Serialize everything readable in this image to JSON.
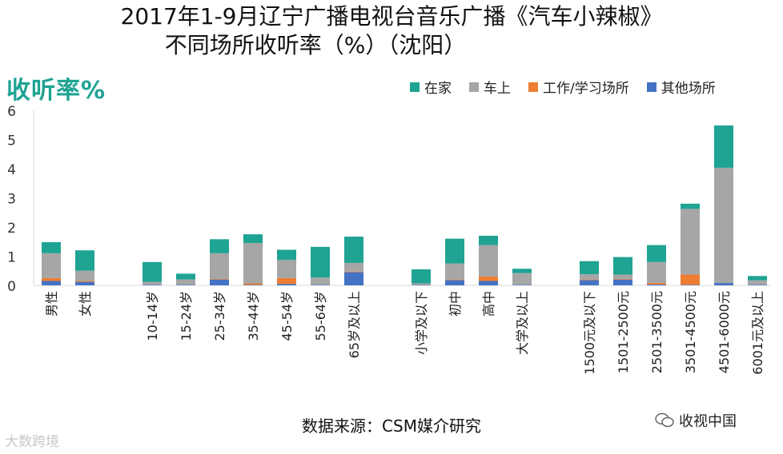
{
  "title_line1": "2017年1-9月辽宁广播电视台音乐广播《汽车小辣椒》",
  "title_line2": "不同场所收听率（%）（沈阳）",
  "source": "数据来源：CSM媒介研究",
  "watermark_left": "大数跨境",
  "watermark_right": "收视中国",
  "colors": {
    "home": "#1fa393",
    "car": "#a6a6a6",
    "work": "#ed7d31",
    "other": "#4472c4"
  },
  "chart_data": {
    "type": "bar",
    "stacked": true,
    "ylabel": "收听率%",
    "ylim": [
      0,
      6
    ],
    "yticks": [
      0,
      1,
      2,
      3,
      4,
      5,
      6
    ],
    "legend_position": "top-right",
    "groups": [
      [
        "男性",
        "女性"
      ],
      [
        "10-14岁",
        "15-24岁",
        "25-34岁",
        "35-44岁",
        "45-54岁",
        "55-64岁",
        "65岁及以上"
      ],
      [
        "小学及以下",
        "初中",
        "高中",
        "大学及以上"
      ],
      [
        "1500元及以下",
        "1501-2500元",
        "2501-3500元",
        "3501-4500元",
        "4501-6000元",
        "6001元及以上"
      ]
    ],
    "categories": [
      "男性",
      "女性",
      "10-14岁",
      "15-24岁",
      "25-34岁",
      "35-44岁",
      "45-54岁",
      "55-64岁",
      "65岁及以上",
      "小学及以下",
      "初中",
      "高中",
      "大学及以上",
      "1500元及以下",
      "1501-2500元",
      "2501-3500元",
      "3501-4500元",
      "4501-6000元",
      "6001元及以上"
    ],
    "series": [
      {
        "name": "其他场所",
        "key": "other",
        "values": [
          0.15,
          0.12,
          0.02,
          0.02,
          0.2,
          0.02,
          0.05,
          0.02,
          0.45,
          0.02,
          0.18,
          0.15,
          0.02,
          0.18,
          0.2,
          0.03,
          0.02,
          0.08,
          0.02
        ]
      },
      {
        "name": "工作/学习场所",
        "key": "work",
        "values": [
          0.1,
          0.03,
          0.0,
          0.0,
          0.02,
          0.05,
          0.2,
          0.0,
          0.02,
          0.0,
          0.02,
          0.15,
          0.0,
          0.02,
          0.02,
          0.05,
          0.35,
          0.0,
          0.0
        ]
      },
      {
        "name": "车上",
        "key": "car",
        "values": [
          0.85,
          0.35,
          0.1,
          0.18,
          0.88,
          1.38,
          0.62,
          0.25,
          0.3,
          0.05,
          0.55,
          1.08,
          0.4,
          0.18,
          0.15,
          0.72,
          2.25,
          3.95,
          0.15
        ]
      },
      {
        "name": "在家",
        "key": "home",
        "values": [
          0.38,
          0.7,
          0.68,
          0.2,
          0.48,
          0.3,
          0.35,
          1.05,
          0.9,
          0.48,
          0.85,
          0.32,
          0.15,
          0.45,
          0.6,
          0.58,
          0.18,
          1.45,
          0.15
        ]
      }
    ]
  }
}
